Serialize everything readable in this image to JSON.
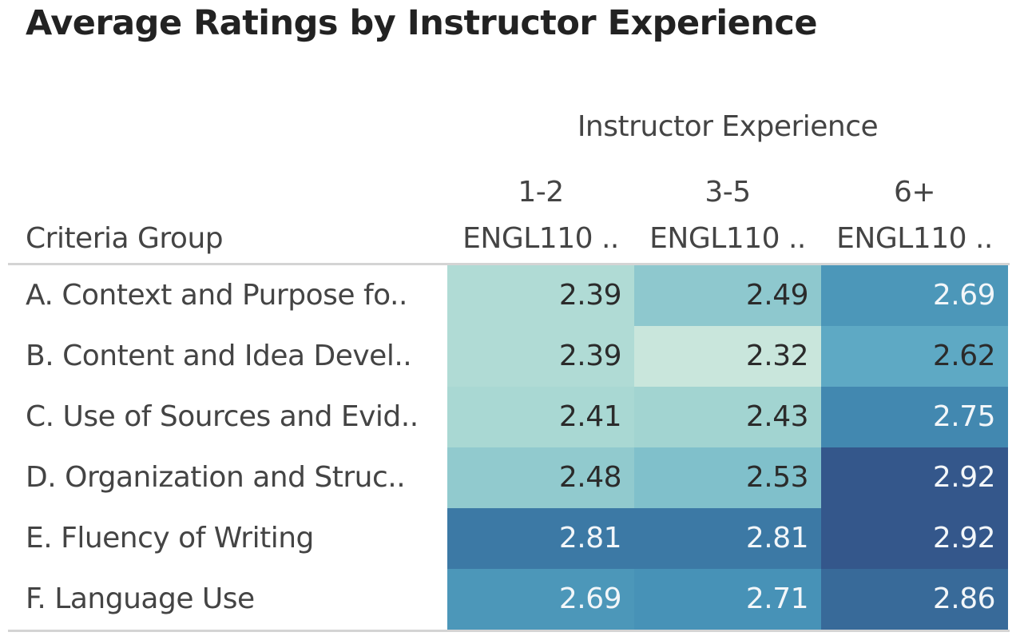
{
  "chart_data": {
    "type": "heatmap",
    "title": "Average Ratings by Instructor Experience",
    "column_group_label": "Instructor Experience",
    "row_header_label": "Criteria Group",
    "columns": [
      {
        "experience": "1-2",
        "course": "ENGL110 .."
      },
      {
        "experience": "3-5",
        "course": "ENGL110 .."
      },
      {
        "experience": "6+",
        "course": "ENGL110 .."
      }
    ],
    "rows": [
      "A. Context and Purpose fo..",
      "B. Content and Idea Devel..",
      "C. Use of Sources and Evid..",
      "D. Organization and Struc..",
      "E. Fluency of Writing",
      "F. Language Use"
    ],
    "values": [
      [
        2.39,
        2.49,
        2.69
      ],
      [
        2.39,
        2.32,
        2.62
      ],
      [
        2.41,
        2.43,
        2.75
      ],
      [
        2.48,
        2.53,
        2.92
      ],
      [
        2.81,
        2.81,
        2.92
      ],
      [
        2.69,
        2.71,
        2.86
      ]
    ],
    "color_scale": {
      "min": 2.32,
      "max": 2.92,
      "stops": [
        "#c9e6dc",
        "#a5d6d2",
        "#84c2cc",
        "#5ea9c4",
        "#4590b5",
        "#3b77a3",
        "#34578b"
      ]
    }
  }
}
